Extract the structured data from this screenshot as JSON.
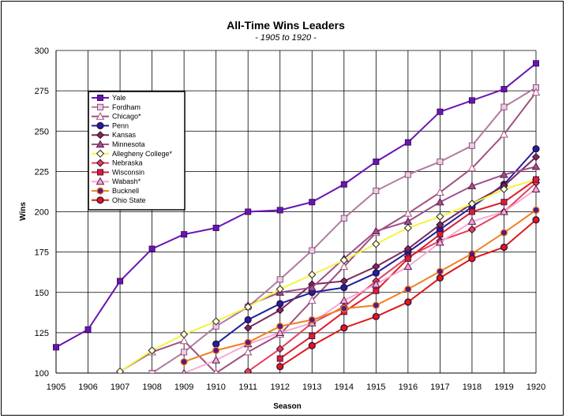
{
  "chart_data": {
    "type": "line",
    "title": "All-Time Wins Leaders",
    "subtitle": "- 1905 to 1920 -",
    "xlabel": "Season",
    "ylabel": "Wins",
    "x": [
      1905,
      1906,
      1907,
      1908,
      1909,
      1910,
      1911,
      1912,
      1913,
      1914,
      1915,
      1916,
      1917,
      1918,
      1919,
      1920
    ],
    "ylim": [
      100,
      300
    ],
    "yticks": [
      100,
      125,
      150,
      175,
      200,
      225,
      250,
      275,
      300
    ],
    "grid": true,
    "legend": "upper-left",
    "series": [
      {
        "name": "Yale",
        "color": "#6a14b4",
        "marker": "square",
        "values": [
          116,
          127,
          157,
          177,
          186,
          190,
          200,
          201,
          206,
          217,
          231,
          243,
          262,
          269,
          276,
          292
        ]
      },
      {
        "name": "Fordham",
        "color": "#b07ba0",
        "marker": "square-light",
        "values": [
          null,
          null,
          null,
          100,
          113,
          129,
          141,
          158,
          176,
          196,
          213,
          223,
          231,
          241,
          265,
          277
        ]
      },
      {
        "name": "Chicago*",
        "color": "#a0507e",
        "marker": "triangle-open",
        "values": [
          null,
          null,
          101,
          113,
          120,
          100,
          113,
          124,
          145,
          166,
          187,
          199,
          212,
          227,
          248,
          274
        ]
      },
      {
        "name": "Penn",
        "color": "#1f1f9f",
        "marker": "circle",
        "values": [
          null,
          null,
          null,
          null,
          null,
          118,
          133,
          143,
          150,
          153,
          162,
          175,
          189,
          203,
          217,
          239
        ]
      },
      {
        "name": "Kansas",
        "color": "#7a2a5a",
        "marker": "diamond",
        "values": [
          null,
          null,
          null,
          null,
          null,
          null,
          128,
          139,
          155,
          157,
          166,
          177,
          192,
          205,
          216,
          234
        ]
      },
      {
        "name": "Minnesota",
        "color": "#a0508a",
        "marker": "triangle",
        "values": [
          null,
          null,
          null,
          null,
          null,
          null,
          142,
          150,
          153,
          171,
          188,
          194,
          206,
          216,
          223,
          228
        ]
      },
      {
        "name": "Allegheny College*",
        "color": "#f4f442",
        "marker": "diamond-open",
        "values": [
          null,
          null,
          101,
          114,
          124,
          132,
          141,
          152,
          161,
          170,
          180,
          190,
          197,
          205,
          214,
          220
        ]
      },
      {
        "name": "Nebraska",
        "color": "#e2405a",
        "marker": "diamond",
        "values": [
          null,
          null,
          null,
          null,
          null,
          null,
          101,
          115,
          131,
          141,
          157,
          172,
          182,
          189,
          200,
          218
        ]
      },
      {
        "name": "Wisconsin",
        "color": "#dd1c2c",
        "marker": "square",
        "values": [
          null,
          null,
          null,
          null,
          null,
          null,
          null,
          109,
          123,
          138,
          151,
          171,
          186,
          200,
          206,
          220
        ]
      },
      {
        "name": "Wabash*",
        "color": "#f7a8d6",
        "marker": "triangle",
        "values": [
          null,
          null,
          null,
          null,
          100,
          108,
          118,
          125,
          131,
          145,
          155,
          166,
          181,
          194,
          200,
          214
        ]
      },
      {
        "name": "Bucknell",
        "color": "#f08020",
        "marker": "circle-dark",
        "values": [
          null,
          null,
          null,
          null,
          107,
          114,
          119,
          129,
          133,
          140,
          142,
          152,
          163,
          174,
          187,
          201
        ]
      },
      {
        "name": "Ohio State",
        "color": "#e01818",
        "marker": "circle",
        "values": [
          null,
          null,
          null,
          null,
          null,
          null,
          null,
          104,
          117,
          128,
          135,
          144,
          159,
          171,
          178,
          195
        ]
      }
    ]
  }
}
